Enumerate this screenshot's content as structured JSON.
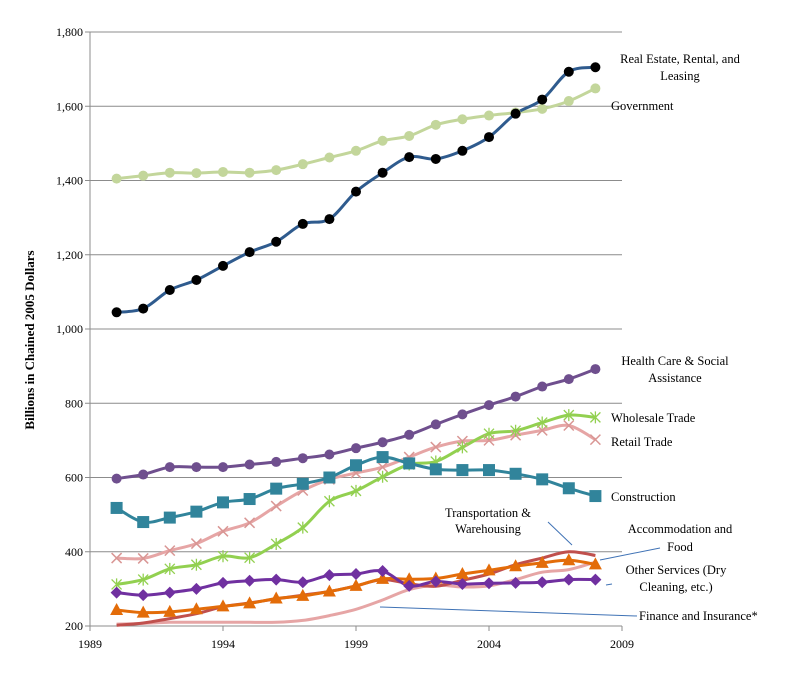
{
  "chart_data": {
    "type": "line",
    "ylabel": "Billions in Chained 2005 Dollars",
    "xlabel": "",
    "xlim": [
      1989,
      2009
    ],
    "ylim": [
      200,
      1800
    ],
    "x_ticks": [
      1989,
      1994,
      1999,
      2004,
      2009
    ],
    "y_ticks": [
      200,
      400,
      600,
      800,
      1000,
      1200,
      1400,
      1600,
      1800
    ],
    "y_tick_labels": [
      "200",
      "400",
      "600",
      "800",
      "1,000",
      "1,200",
      "1,400",
      "1,600",
      "1,800"
    ],
    "grid": "horizontal",
    "x": [
      1990,
      1991,
      1992,
      1993,
      1994,
      1995,
      1996,
      1997,
      1998,
      1999,
      2000,
      2001,
      2002,
      2003,
      2004,
      2005,
      2006,
      2007,
      2008
    ],
    "series": [
      {
        "name": "Real Estate, Rental, and Leasing",
        "label_lines": [
          "Real Estate, Rental, and",
          "Leasing"
        ],
        "color": "#2f5b8e",
        "marker": "circle",
        "marker_color": "#000000",
        "values": [
          1045,
          1055,
          1105,
          1132,
          1170,
          1207,
          1235,
          1283,
          1296,
          1370,
          1421,
          1463,
          1458,
          1480,
          1517,
          1580,
          1618,
          1693,
          1705
        ]
      },
      {
        "name": "Government",
        "label_lines": [
          "Government"
        ],
        "color": "#c3d69b",
        "marker": "circle",
        "marker_color": "#c3d69b",
        "values": [
          1405,
          1413,
          1421,
          1420,
          1423,
          1421,
          1428,
          1444,
          1462,
          1480,
          1507,
          1520,
          1550,
          1565,
          1575,
          1583,
          1593,
          1614,
          1648
        ]
      },
      {
        "name": "Health Care & Social Assistance",
        "label_lines": [
          "Health Care & Social",
          "Assistance"
        ],
        "color": "#6f4f8e",
        "marker": "circle",
        "marker_color": "#6f4f8e",
        "values": [
          597,
          608,
          628,
          628,
          628,
          635,
          642,
          652,
          662,
          679,
          695,
          715,
          743,
          770,
          795,
          818,
          845,
          865,
          892
        ]
      },
      {
        "name": "Wholesale Trade",
        "label_lines": [
          "Wholesale Trade"
        ],
        "color": "#92d050",
        "marker": "star",
        "marker_color": "#92d050",
        "values": [
          312,
          325,
          354,
          365,
          388,
          384,
          421,
          465,
          536,
          564,
          602,
          635,
          643,
          681,
          718,
          726,
          748,
          768,
          762
        ]
      },
      {
        "name": "Retail Trade",
        "label_lines": [
          "Retail Trade"
        ],
        "color": "#e6a5a5",
        "marker": "x",
        "marker_color": "#d99694",
        "values": [
          383,
          382,
          403,
          422,
          455,
          478,
          523,
          565,
          595,
          612,
          628,
          655,
          682,
          698,
          700,
          714,
          727,
          740,
          702
        ]
      },
      {
        "name": "Construction",
        "label_lines": [
          "Construction"
        ],
        "color": "#31849b",
        "marker": "square",
        "marker_color": "#31849b",
        "values": [
          518,
          480,
          492,
          508,
          533,
          542,
          570,
          583,
          600,
          633,
          655,
          638,
          622,
          620,
          620,
          610,
          595,
          571,
          550
        ]
      },
      {
        "name": "Transportation & Warehousing",
        "label_lines": [
          "Transportation &",
          "Warehousing"
        ],
        "color": "#c0504d",
        "marker": "none",
        "marker_color": "#c0504d",
        "values": [
          202,
          208,
          220,
          233,
          252,
          262,
          273,
          283,
          293,
          308,
          325,
          314,
          307,
          323,
          340,
          365,
          383,
          400,
          390
        ]
      },
      {
        "name": "Accommodation and Food",
        "label_lines": [
          "Accommodation and",
          "Food"
        ],
        "color": "#e36c09",
        "marker": "triangle",
        "marker_color": "#e36c09",
        "values": [
          243,
          236,
          238,
          245,
          253,
          261,
          274,
          281,
          293,
          308,
          327,
          326,
          328,
          340,
          350,
          361,
          370,
          377,
          366
        ]
      },
      {
        "name": "Other Services (Dry Cleaning, etc.)",
        "label_lines": [
          "Other Services (Dry",
          "Cleaning, etc.)"
        ],
        "color": "#7030a0",
        "marker": "diamond",
        "marker_color": "#7030a0",
        "values": [
          290,
          283,
          290,
          300,
          316,
          322,
          325,
          318,
          337,
          340,
          348,
          308,
          320,
          313,
          315,
          316,
          318,
          325,
          325
        ]
      },
      {
        "name": "Finance and Insurance*",
        "label_lines": [
          "Finance and Insurance*"
        ],
        "color": "#e6a5a5",
        "marker": "none",
        "marker_color": "#e6a5a5",
        "values": [
          205,
          207,
          210,
          210,
          210,
          210,
          210,
          215,
          228,
          245,
          270,
          298,
          310,
          305,
          308,
          325,
          345,
          352,
          372
        ]
      }
    ]
  }
}
